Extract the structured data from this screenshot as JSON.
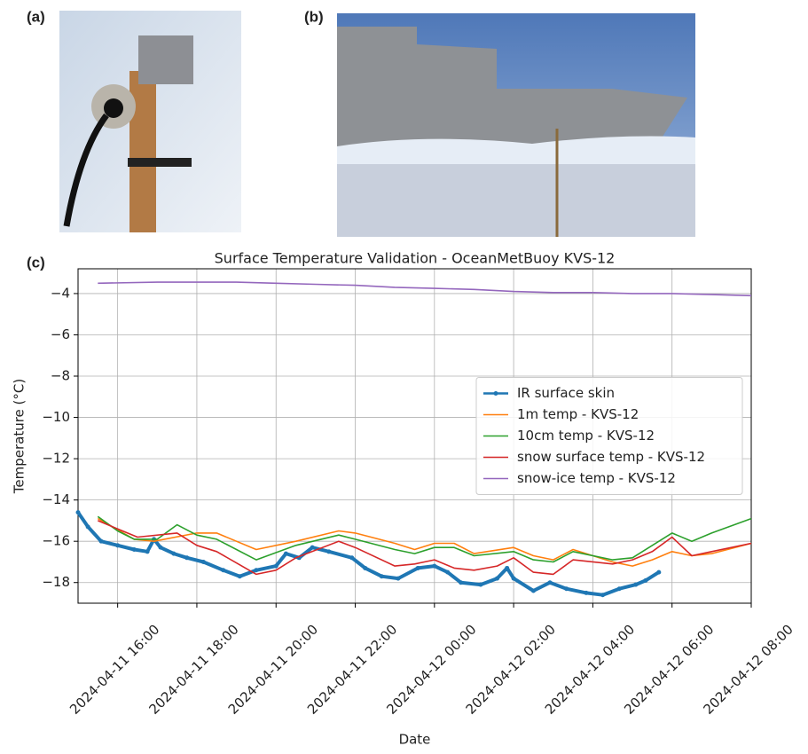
{
  "panel_labels": [
    "(a)",
    "(b)",
    "(c)"
  ],
  "chart_data": {
    "type": "line",
    "title": "Surface Temperature Validation - OceanMetBuoy KVS-12",
    "xlabel": "Date",
    "ylabel": "Temperature (°C)",
    "xlim": [
      "2024-04-11 15:00",
      "2024-04-12 08:00"
    ],
    "xticks": [
      "2024-04-11 16:00",
      "2024-04-11 18:00",
      "2024-04-11 20:00",
      "2024-04-11 22:00",
      "2024-04-12 00:00",
      "2024-04-12 02:00",
      "2024-04-12 04:00",
      "2024-04-12 06:00",
      "2024-04-12 08:00"
    ],
    "ylim": [
      -19,
      -2.8
    ],
    "yticks": [
      {
        "value": -4,
        "label": "−4"
      },
      {
        "value": -6,
        "label": "−6"
      },
      {
        "value": -8,
        "label": "−8"
      },
      {
        "value": -10,
        "label": "−10"
      },
      {
        "value": -12,
        "label": "−12"
      },
      {
        "value": -14,
        "label": "−14"
      },
      {
        "value": -16,
        "label": "−16"
      },
      {
        "value": -18,
        "label": "−18"
      }
    ],
    "grid": true,
    "legend": "center right",
    "series": [
      {
        "name": "IR surface skin",
        "color": "#1f77b4",
        "x": [
          "2024-04-11 15:00",
          "2024-04-11 15:15",
          "2024-04-11 15:35",
          "2024-04-11 16:00",
          "2024-04-11 16:25",
          "2024-04-11 16:45",
          "2024-04-11 16:55",
          "2024-04-11 17:05",
          "2024-04-11 17:25",
          "2024-04-11 17:45",
          "2024-04-11 18:10",
          "2024-04-11 18:40",
          "2024-04-11 19:05",
          "2024-04-11 19:30",
          "2024-04-11 20:00",
          "2024-04-11 20:15",
          "2024-04-11 20:35",
          "2024-04-11 20:55",
          "2024-04-11 21:20",
          "2024-04-11 21:55",
          "2024-04-11 22:15",
          "2024-04-11 22:40",
          "2024-04-11 23:05",
          "2024-04-11 23:35",
          "2024-04-12 00:00",
          "2024-04-12 00:20",
          "2024-04-12 00:40",
          "2024-04-12 01:10",
          "2024-04-12 01:35",
          "2024-04-12 01:50",
          "2024-04-12 02:00",
          "2024-04-12 02:30",
          "2024-04-12 02:55",
          "2024-04-12 03:20",
          "2024-04-12 03:50",
          "2024-04-12 04:15",
          "2024-04-12 04:40",
          "2024-04-12 05:05",
          "2024-04-12 05:20",
          "2024-04-12 05:40"
        ],
        "values": [
          -14.6,
          -15.3,
          -16.0,
          -16.2,
          -16.4,
          -16.5,
          -15.9,
          -16.3,
          -16.6,
          -16.8,
          -17.0,
          -17.4,
          -17.7,
          -17.4,
          -17.2,
          -16.6,
          -16.8,
          -16.3,
          -16.5,
          -16.8,
          -17.3,
          -17.7,
          -17.8,
          -17.3,
          -17.2,
          -17.5,
          -18.0,
          -18.1,
          -17.8,
          -17.3,
          -17.8,
          -18.4,
          -18.0,
          -18.3,
          -18.5,
          -18.6,
          -18.3,
          -18.1,
          -17.9,
          -17.5
        ]
      },
      {
        "name": "1m temp - KVS-12",
        "color": "#ff7f0e",
        "x": [
          "2024-04-11 15:30",
          "2024-04-11 16:25",
          "2024-04-11 16:55",
          "2024-04-11 18:00",
          "2024-04-11 18:30",
          "2024-04-11 19:30",
          "2024-04-11 20:30",
          "2024-04-11 21:35",
          "2024-04-11 22:00",
          "2024-04-11 23:00",
          "2024-04-11 23:30",
          "2024-04-12 00:00",
          "2024-04-12 00:30",
          "2024-04-12 01:00",
          "2024-04-12 02:00",
          "2024-04-12 02:30",
          "2024-04-12 03:00",
          "2024-04-12 03:30",
          "2024-04-12 04:30",
          "2024-04-12 05:00",
          "2024-04-12 05:30",
          "2024-04-12 06:00",
          "2024-04-12 06:30",
          "2024-04-12 07:00",
          "2024-04-12 08:00"
        ],
        "values": [
          -14.9,
          -15.9,
          -16.0,
          -15.6,
          -15.6,
          -16.4,
          -16.0,
          -15.5,
          -15.6,
          -16.1,
          -16.4,
          -16.1,
          -16.1,
          -16.6,
          -16.3,
          -16.7,
          -16.9,
          -16.4,
          -17.0,
          -17.2,
          -16.9,
          -16.5,
          -16.7,
          -16.6,
          -16.1
        ]
      },
      {
        "name": "10cm temp - KVS-12",
        "color": "#2ca02c",
        "x": [
          "2024-04-11 15:30",
          "2024-04-11 16:00",
          "2024-04-11 16:25",
          "2024-04-11 17:00",
          "2024-04-11 17:30",
          "2024-04-11 18:00",
          "2024-04-11 18:30",
          "2024-04-11 19:30",
          "2024-04-11 20:30",
          "2024-04-11 21:35",
          "2024-04-11 22:00",
          "2024-04-11 23:00",
          "2024-04-11 23:30",
          "2024-04-12 00:00",
          "2024-04-12 00:30",
          "2024-04-12 01:00",
          "2024-04-12 02:00",
          "2024-04-12 02:30",
          "2024-04-12 03:00",
          "2024-04-12 03:30",
          "2024-04-12 04:30",
          "2024-04-12 05:00",
          "2024-04-12 06:00",
          "2024-04-12 06:30",
          "2024-04-12 07:00",
          "2024-04-12 08:00"
        ],
        "values": [
          -14.8,
          -15.5,
          -15.9,
          -15.9,
          -15.2,
          -15.7,
          -15.9,
          -16.9,
          -16.2,
          -15.7,
          -15.9,
          -16.4,
          -16.6,
          -16.3,
          -16.3,
          -16.7,
          -16.5,
          -16.9,
          -17.0,
          -16.5,
          -16.9,
          -16.8,
          -15.6,
          -16.0,
          -15.6,
          -14.9
        ]
      },
      {
        "name": "snow surface temp - KVS-12",
        "color": "#d62728",
        "x": [
          "2024-04-11 15:30",
          "2024-04-11 16:00",
          "2024-04-11 16:30",
          "2024-04-11 17:30",
          "2024-04-11 18:00",
          "2024-04-11 18:30",
          "2024-04-11 19:30",
          "2024-04-11 20:00",
          "2024-04-11 20:30",
          "2024-04-11 21:35",
          "2024-04-11 22:00",
          "2024-04-11 23:00",
          "2024-04-11 23:30",
          "2024-04-12 00:00",
          "2024-04-12 00:30",
          "2024-04-12 01:00",
          "2024-04-12 01:35",
          "2024-04-12 02:00",
          "2024-04-12 02:30",
          "2024-04-12 03:00",
          "2024-04-12 03:30",
          "2024-04-12 04:30",
          "2024-04-12 05:00",
          "2024-04-12 05:30",
          "2024-04-12 06:00",
          "2024-04-12 06:30",
          "2024-04-12 07:00",
          "2024-04-12 08:00"
        ],
        "values": [
          -15.0,
          -15.4,
          -15.8,
          -15.6,
          -16.2,
          -16.5,
          -17.6,
          -17.4,
          -16.8,
          -16.0,
          -16.3,
          -17.2,
          -17.1,
          -16.9,
          -17.3,
          -17.4,
          -17.2,
          -16.8,
          -17.5,
          -17.6,
          -16.9,
          -17.1,
          -16.9,
          -16.5,
          -15.8,
          -16.7,
          -16.5,
          -16.1
        ]
      },
      {
        "name": "snow-ice temp - KVS-12",
        "color": "#9467bd",
        "x": [
          "2024-04-11 15:30",
          "2024-04-11 17:00",
          "2024-04-11 19:00",
          "2024-04-11 20:00",
          "2024-04-11 21:00",
          "2024-04-11 22:00",
          "2024-04-11 23:00",
          "2024-04-12 00:00",
          "2024-04-12 01:00",
          "2024-04-12 02:00",
          "2024-04-12 03:00",
          "2024-04-12 04:00",
          "2024-04-12 05:00",
          "2024-04-12 06:00",
          "2024-04-12 07:00",
          "2024-04-12 08:00"
        ],
        "values": [
          -3.5,
          -3.45,
          -3.45,
          -3.5,
          -3.55,
          -3.6,
          -3.7,
          -3.75,
          -3.8,
          -3.9,
          -3.95,
          -3.95,
          -4.0,
          -4.0,
          -4.05,
          -4.1
        ]
      }
    ]
  }
}
